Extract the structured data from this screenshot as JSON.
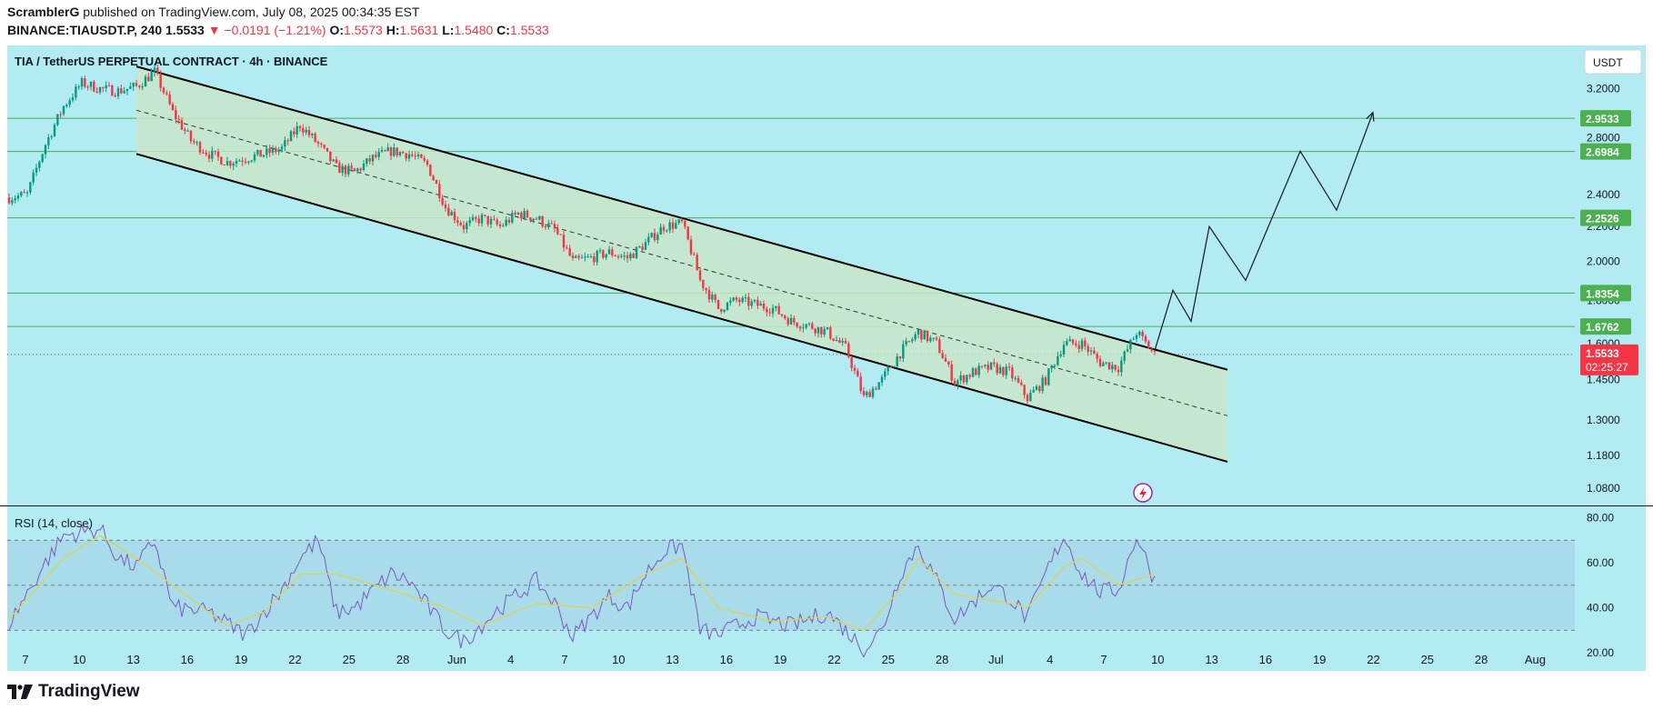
{
  "header": {
    "author": "ScramblerG",
    "published_text": " published on TradingView.com, July 08, 2025 00:34:35 EST",
    "symbol_interval": "BINANCE:TIAUSDT.P, 240",
    "last": " 1.5533",
    "change": "▼ −0.0191 (−1.21%)",
    "o_label": " O:",
    "o_value": "1.5573",
    "h_label": " H:",
    "h_value": "1.5631",
    "l_label": " L:",
    "l_value": "1.5480",
    "c_label": " C:",
    "c_value": "1.5533"
  },
  "legend": {
    "title": "TIA / TetherUS PERPETUAL CONTRACT · 4h · BINANCE"
  },
  "currency_button": "USDT",
  "rsi": {
    "label": "RSI (14, close)",
    "ticks": [
      "80.00",
      "60.00",
      "40.00",
      "20.00"
    ]
  },
  "footer": {
    "brand": "TradingView"
  },
  "chart_data": {
    "type": "candlestick",
    "symbol": "TIA / TetherUS PERPETUAL CONTRACT",
    "interval": "4h",
    "exchange": "BINANCE",
    "y_scale": "log",
    "ylim": [
      1.03,
      3.6
    ],
    "y_ticks": [
      "3.2000",
      "2.8000",
      "2.4000",
      "2.2000",
      "2.0000",
      "1.8000",
      "1.6000",
      "1.4500",
      "1.3000",
      "1.1800",
      "1.0800"
    ],
    "x_ticks": [
      "7",
      "10",
      "13",
      "16",
      "19",
      "22",
      "25",
      "28",
      "Jun",
      "4",
      "7",
      "10",
      "13",
      "16",
      "19",
      "22",
      "25",
      "28",
      "Jul",
      "4",
      "7",
      "10",
      "13",
      "16",
      "19",
      "22",
      "25",
      "28",
      "Aug"
    ],
    "price_path": [
      [
        "2025-05-06",
        2.38
      ],
      [
        "2025-05-07",
        2.4
      ],
      [
        "2025-05-08",
        2.75
      ],
      [
        "2025-05-09",
        3.05
      ],
      [
        "2025-05-10",
        3.25
      ],
      [
        "2025-05-11",
        3.2
      ],
      [
        "2025-05-12",
        3.18
      ],
      [
        "2025-05-13",
        3.22
      ],
      [
        "2025-05-14",
        3.35
      ],
      [
        "2025-05-15",
        3.0
      ],
      [
        "2025-05-16",
        2.78
      ],
      [
        "2025-05-17",
        2.68
      ],
      [
        "2025-05-18",
        2.62
      ],
      [
        "2025-05-19",
        2.65
      ],
      [
        "2025-05-20",
        2.68
      ],
      [
        "2025-05-21",
        2.72
      ],
      [
        "2025-05-22",
        2.9
      ],
      [
        "2025-05-23",
        2.75
      ],
      [
        "2025-05-24",
        2.58
      ],
      [
        "2025-05-25",
        2.55
      ],
      [
        "2025-05-26",
        2.65
      ],
      [
        "2025-05-27",
        2.7
      ],
      [
        "2025-05-28",
        2.68
      ],
      [
        "2025-05-29",
        2.6
      ],
      [
        "2025-05-30",
        2.32
      ],
      [
        "2025-05-31",
        2.2
      ],
      [
        "2025-06-01",
        2.25
      ],
      [
        "2025-06-02",
        2.2
      ],
      [
        "2025-06-03",
        2.28
      ],
      [
        "2025-06-04",
        2.25
      ],
      [
        "2025-06-05",
        2.18
      ],
      [
        "2025-06-06",
        2.0
      ],
      [
        "2025-06-07",
        2.02
      ],
      [
        "2025-06-08",
        2.05
      ],
      [
        "2025-06-09",
        2.02
      ],
      [
        "2025-06-10",
        2.1
      ],
      [
        "2025-06-11",
        2.2
      ],
      [
        "2025-06-12",
        2.22
      ],
      [
        "2025-06-13",
        1.9
      ],
      [
        "2025-06-14",
        1.76
      ],
      [
        "2025-06-15",
        1.8
      ],
      [
        "2025-06-16",
        1.78
      ],
      [
        "2025-06-17",
        1.76
      ],
      [
        "2025-06-18",
        1.7
      ],
      [
        "2025-06-19",
        1.68
      ],
      [
        "2025-06-20",
        1.65
      ],
      [
        "2025-06-21",
        1.58
      ],
      [
        "2025-06-22",
        1.38
      ],
      [
        "2025-06-23",
        1.45
      ],
      [
        "2025-06-24",
        1.56
      ],
      [
        "2025-06-25",
        1.65
      ],
      [
        "2025-06-26",
        1.6
      ],
      [
        "2025-06-27",
        1.44
      ],
      [
        "2025-06-28",
        1.48
      ],
      [
        "2025-06-29",
        1.5
      ],
      [
        "2025-06-30",
        1.48
      ],
      [
        "2025-07-01",
        1.38
      ],
      [
        "2025-07-02",
        1.45
      ],
      [
        "2025-07-03",
        1.6
      ],
      [
        "2025-07-04",
        1.6
      ],
      [
        "2025-07-05",
        1.52
      ],
      [
        "2025-07-06",
        1.5
      ],
      [
        "2025-07-07",
        1.65
      ],
      [
        "2025-07-08",
        1.5533
      ]
    ],
    "channel": {
      "upper": [
        [
          "2025-05-13",
          3.4
        ],
        [
          "2025-07-12",
          1.49
        ]
      ],
      "lower": [
        [
          "2025-05-13",
          2.68
        ],
        [
          "2025-07-12",
          1.16
        ]
      ]
    },
    "horizontal_levels": [
      2.9533,
      2.6984,
      2.2526,
      1.8354,
      1.6762
    ],
    "level_labels": [
      "2.9533",
      "2.6984",
      "2.2526",
      "1.8354",
      "1.6762"
    ],
    "projection_path": [
      [
        "2025-07-08",
        1.57
      ],
      [
        "2025-07-09",
        1.85
      ],
      [
        "2025-07-10",
        1.7
      ],
      [
        "2025-07-11",
        2.2
      ],
      [
        "2025-07-13",
        1.9
      ],
      [
        "2025-07-16",
        2.7
      ],
      [
        "2025-07-18",
        2.3
      ],
      [
        "2025-07-20",
        3.0
      ]
    ],
    "last_price": "1.5533",
    "countdown": "02:25:27",
    "rsi": {
      "name": "RSI (14, close)",
      "ylim": [
        12,
        85
      ],
      "bands": [
        70,
        50,
        30
      ],
      "y_ticks": [
        "80.00",
        "60.00",
        "40.00",
        "20.00"
      ],
      "values": [
        [
          "2025-05-06",
          33
        ],
        [
          "2025-05-08",
          60
        ],
        [
          "2025-05-09",
          72
        ],
        [
          "2025-05-11",
          75
        ],
        [
          "2025-05-12",
          62
        ],
        [
          "2025-05-13",
          58
        ],
        [
          "2025-05-14",
          70
        ],
        [
          "2025-05-15",
          40
        ],
        [
          "2025-05-17",
          38
        ],
        [
          "2025-05-19",
          28
        ],
        [
          "2025-05-21",
          48
        ],
        [
          "2025-05-22",
          62
        ],
        [
          "2025-05-23",
          70
        ],
        [
          "2025-05-24",
          38
        ],
        [
          "2025-05-25",
          40
        ],
        [
          "2025-05-27",
          55
        ],
        [
          "2025-05-28",
          52
        ],
        [
          "2025-05-30",
          30
        ],
        [
          "2025-05-31",
          25
        ],
        [
          "2025-06-02",
          40
        ],
        [
          "2025-06-04",
          52
        ],
        [
          "2025-06-05",
          42
        ],
        [
          "2025-06-06",
          27
        ],
        [
          "2025-06-08",
          45
        ],
        [
          "2025-06-09",
          40
        ],
        [
          "2025-06-10",
          55
        ],
        [
          "2025-06-11",
          65
        ],
        [
          "2025-06-12",
          68
        ],
        [
          "2025-06-13",
          30
        ],
        [
          "2025-06-14",
          28
        ],
        [
          "2025-06-16",
          36
        ],
        [
          "2025-06-18",
          32
        ],
        [
          "2025-06-20",
          38
        ],
        [
          "2025-06-22",
          22
        ],
        [
          "2025-06-23",
          30
        ],
        [
          "2025-06-24",
          55
        ],
        [
          "2025-06-25",
          68
        ],
        [
          "2025-06-26",
          52
        ],
        [
          "2025-06-27",
          35
        ],
        [
          "2025-06-29",
          50
        ],
        [
          "2025-06-30",
          45
        ],
        [
          "2025-07-01",
          35
        ],
        [
          "2025-07-02",
          55
        ],
        [
          "2025-07-03",
          72
        ],
        [
          "2025-07-04",
          55
        ],
        [
          "2025-07-05",
          47
        ],
        [
          "2025-07-06",
          48
        ],
        [
          "2025-07-07",
          72
        ],
        [
          "2025-07-08",
          52
        ]
      ],
      "ma": [
        [
          "2025-05-06",
          35
        ],
        [
          "2025-05-09",
          62
        ],
        [
          "2025-05-11",
          72
        ],
        [
          "2025-05-13",
          62
        ],
        [
          "2025-05-15",
          50
        ],
        [
          "2025-05-18",
          32
        ],
        [
          "2025-05-20",
          38
        ],
        [
          "2025-05-22",
          55
        ],
        [
          "2025-05-24",
          55
        ],
        [
          "2025-05-27",
          48
        ],
        [
          "2025-05-30",
          40
        ],
        [
          "2025-06-01",
          32
        ],
        [
          "2025-06-04",
          42
        ],
        [
          "2025-06-07",
          40
        ],
        [
          "2025-06-10",
          55
        ],
        [
          "2025-06-12",
          62
        ],
        [
          "2025-06-14",
          40
        ],
        [
          "2025-06-17",
          34
        ],
        [
          "2025-06-20",
          36
        ],
        [
          "2025-06-22",
          30
        ],
        [
          "2025-06-24",
          48
        ],
        [
          "2025-06-25",
          62
        ],
        [
          "2025-06-27",
          46
        ],
        [
          "2025-06-30",
          42
        ],
        [
          "2025-07-01",
          40
        ],
        [
          "2025-07-03",
          58
        ],
        [
          "2025-07-04",
          62
        ],
        [
          "2025-07-06",
          50
        ],
        [
          "2025-07-08",
          55
        ]
      ]
    }
  },
  "colors": {
    "plot_bg": "#b2ebf2",
    "channel_fill": "#c8e6c9",
    "up": "#089981",
    "down": "#f23645",
    "level": "#4caf50",
    "rsi_line": "#7e57c2",
    "rsi_ma": "#e3d24a",
    "rsi_band_fill": "#a5d6e7"
  }
}
